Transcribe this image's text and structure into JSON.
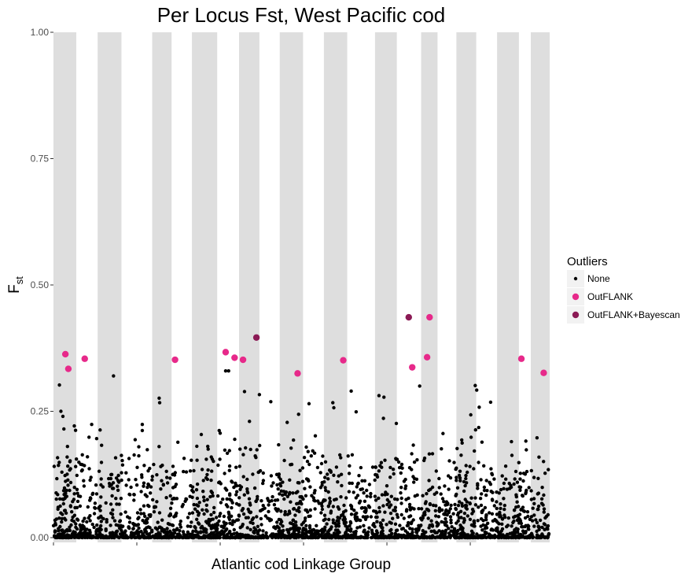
{
  "chart_data": {
    "type": "scatter",
    "title": "Per Locus Fst, West Pacific cod",
    "xlabel": "Atlantic cod Linkage Group",
    "ylabel": {
      "main": "F",
      "subscript": "st"
    },
    "xlim": [
      0,
      100
    ],
    "ylim": [
      0,
      1
    ],
    "yticks": [
      {
        "value": 0.0,
        "label": "0.00"
      },
      {
        "value": 0.25,
        "label": "0.25"
      },
      {
        "value": 0.5,
        "label": "0.50"
      },
      {
        "value": 0.75,
        "label": "0.75"
      },
      {
        "value": 1.0,
        "label": "1.00"
      }
    ],
    "xticks": [
      0,
      16.8,
      33.6,
      50.4,
      67.2,
      84.0
    ],
    "grid": false,
    "legend_position": "right",
    "band_color": "#dedede",
    "alternating_bands": [
      [
        0,
        4.6
      ],
      [
        8.9,
        13.7
      ],
      [
        19.9,
        23.8
      ],
      [
        27.9,
        33.0
      ],
      [
        37.4,
        41.5
      ],
      [
        45.6,
        50.3
      ],
      [
        54.5,
        59.2
      ],
      [
        64.8,
        69.2
      ],
      [
        74.1,
        77.4
      ],
      [
        81.2,
        85.2
      ],
      [
        89.4,
        93.8
      ],
      [
        96.2,
        100
      ]
    ],
    "legend": {
      "title": "Outliers",
      "entries": [
        {
          "label": "None",
          "color": "#000000",
          "size": 2.2
        },
        {
          "label": "OutFLANK",
          "color": "#e7298a",
          "size": 4.2
        },
        {
          "label": "OutFLANK+Bayescan",
          "color": "#8b1a55",
          "size": 4.2
        }
      ]
    },
    "series": [
      {
        "name": "OutFLANK",
        "color": "#e7298a",
        "points": [
          [
            2.4,
            0.363
          ],
          [
            3.0,
            0.334
          ],
          [
            6.3,
            0.354
          ],
          [
            24.5,
            0.352
          ],
          [
            34.7,
            0.367
          ],
          [
            36.5,
            0.356
          ],
          [
            38.2,
            0.352
          ],
          [
            49.2,
            0.325
          ],
          [
            58.4,
            0.351
          ],
          [
            72.3,
            0.337
          ],
          [
            75.3,
            0.357
          ],
          [
            75.8,
            0.436
          ],
          [
            94.3,
            0.354
          ],
          [
            98.8,
            0.326
          ]
        ]
      },
      {
        "name": "OutFLANK+Bayescan",
        "color": "#8b1a55",
        "points": [
          [
            40.9,
            0.396
          ],
          [
            71.6,
            0.436
          ]
        ]
      },
      {
        "name": "None",
        "color": "#000000",
        "points": [
          [
            1.2,
            0.302
          ],
          [
            1.5,
            0.25
          ],
          [
            1.9,
            0.24
          ],
          [
            2.1,
            0.215
          ],
          [
            4.2,
            0.221
          ],
          [
            7.7,
            0.224
          ],
          [
            9.4,
            0.213
          ],
          [
            12.1,
            0.32
          ],
          [
            17.9,
            0.224
          ],
          [
            17.9,
            0.212
          ],
          [
            21.3,
            0.276
          ],
          [
            21.4,
            0.267
          ],
          [
            33.4,
            0.212
          ],
          [
            34.7,
            0.33
          ],
          [
            35.3,
            0.33
          ],
          [
            38.5,
            0.289
          ],
          [
            39.5,
            0.23
          ],
          [
            41.5,
            0.283
          ],
          [
            43.8,
            0.269
          ],
          [
            47.1,
            0.228
          ],
          [
            49.4,
            0.244
          ],
          [
            51.5,
            0.265
          ],
          [
            56.3,
            0.267
          ],
          [
            56.5,
            0.257
          ],
          [
            60.0,
            0.29
          ],
          [
            61.0,
            0.249
          ],
          [
            65.6,
            0.281
          ],
          [
            66.6,
            0.278
          ],
          [
            66.5,
            0.236
          ],
          [
            69.1,
            0.226
          ],
          [
            73.8,
            0.3
          ],
          [
            78.5,
            0.206
          ],
          [
            84.1,
            0.243
          ],
          [
            85.0,
            0.301
          ],
          [
            85.3,
            0.292
          ],
          [
            85.7,
            0.218
          ],
          [
            88.1,
            0.268
          ],
          [
            85.8,
            0.258
          ],
          [
            92.3,
            0.19
          ],
          [
            95.2,
            0.191
          ]
        ],
        "dense_background_count": 2600,
        "dense_background_typical_max": 0.18
      }
    ]
  }
}
